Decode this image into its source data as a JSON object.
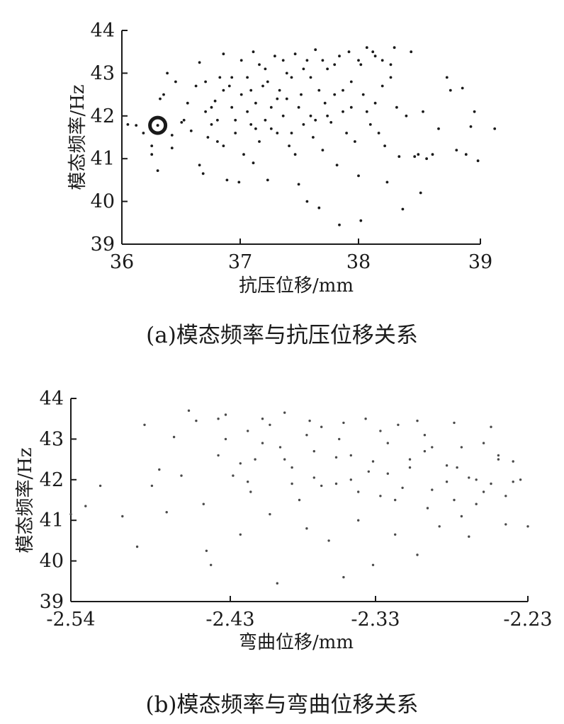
{
  "chart_data": [
    {
      "type": "scatter",
      "caption": "(a)模态频率与抗压位移关系",
      "xlabel": "抗压位移/mm",
      "ylabel": "模态频率/Hz",
      "xlim": [
        36,
        39
      ],
      "ylim": [
        39,
        44
      ],
      "xticks": [
        "36",
        "37",
        "38",
        "39"
      ],
      "yticks": [
        "39",
        "40",
        "41",
        "42",
        "43",
        "44"
      ],
      "marker_color": "#1a1a1a",
      "highlight": {
        "x": 36.3,
        "y": 41.78,
        "shape": "circle"
      },
      "points": [
        [
          36.05,
          41.8
        ],
        [
          36.12,
          41.78
        ],
        [
          36.18,
          41.6
        ],
        [
          36.25,
          41.3
        ],
        [
          36.25,
          41.1
        ],
        [
          36.3,
          40.72
        ],
        [
          36.32,
          42.4
        ],
        [
          36.35,
          42.5
        ],
        [
          36.38,
          43.0
        ],
        [
          36.42,
          41.55
        ],
        [
          36.45,
          42.8
        ],
        [
          36.42,
          41.25
        ],
        [
          36.5,
          41.85
        ],
        [
          36.52,
          41.9
        ],
        [
          36.55,
          42.3
        ],
        [
          36.58,
          41.65
        ],
        [
          36.62,
          42.7
        ],
        [
          36.65,
          43.25
        ],
        [
          36.65,
          40.85
        ],
        [
          36.68,
          40.65
        ],
        [
          36.7,
          42.1
        ],
        [
          36.72,
          41.5
        ],
        [
          36.75,
          41.8
        ],
        [
          36.78,
          42.35
        ],
        [
          36.8,
          41.9
        ],
        [
          36.82,
          42.9
        ],
        [
          36.85,
          43.45
        ],
        [
          36.85,
          41.3
        ],
        [
          36.88,
          40.5
        ],
        [
          36.9,
          42.7
        ],
        [
          36.92,
          42.2
        ],
        [
          36.95,
          41.6
        ],
        [
          36.98,
          40.45
        ],
        [
          37.0,
          43.3
        ],
        [
          37.0,
          42.5
        ],
        [
          37.02,
          41.1
        ],
        [
          37.05,
          42.9
        ],
        [
          37.08,
          41.8
        ],
        [
          37.1,
          43.5
        ],
        [
          37.1,
          40.9
        ],
        [
          37.12,
          42.3
        ],
        [
          37.15,
          41.4
        ],
        [
          37.18,
          42.7
        ],
        [
          37.2,
          43.1
        ],
        [
          37.2,
          41.9
        ],
        [
          37.22,
          40.5
        ],
        [
          37.25,
          42.2
        ],
        [
          37.28,
          43.4
        ],
        [
          37.3,
          41.6
        ],
        [
          37.32,
          42.6
        ],
        [
          37.35,
          42.0
        ],
        [
          37.38,
          43.0
        ],
        [
          37.4,
          41.3
        ],
        [
          37.42,
          42.9
        ],
        [
          37.45,
          43.45
        ],
        [
          37.45,
          41.1
        ],
        [
          37.48,
          40.4
        ],
        [
          37.5,
          42.5
        ],
        [
          37.52,
          41.8
        ],
        [
          37.55,
          43.3
        ],
        [
          37.55,
          40.0
        ],
        [
          37.58,
          42.0
        ],
        [
          37.6,
          41.5
        ],
        [
          37.62,
          43.55
        ],
        [
          37.65,
          42.6
        ],
        [
          37.65,
          39.85
        ],
        [
          37.68,
          41.2
        ],
        [
          37.7,
          42.3
        ],
        [
          37.72,
          43.1
        ],
        [
          37.75,
          41.85
        ],
        [
          37.78,
          42.5
        ],
        [
          37.8,
          40.85
        ],
        [
          37.82,
          43.4
        ],
        [
          37.82,
          39.45
        ],
        [
          37.85,
          42.1
        ],
        [
          37.88,
          41.6
        ],
        [
          37.9,
          43.5
        ],
        [
          37.92,
          42.8
        ],
        [
          37.95,
          41.4
        ],
        [
          37.98,
          40.6
        ],
        [
          38.0,
          39.55
        ],
        [
          38.0,
          43.2
        ],
        [
          38.02,
          42.5
        ],
        [
          38.05,
          43.6
        ],
        [
          38.08,
          41.8
        ],
        [
          38.1,
          43.5
        ],
        [
          38.12,
          42.3
        ],
        [
          38.15,
          41.6
        ],
        [
          38.18,
          43.3
        ],
        [
          38.2,
          41.3
        ],
        [
          38.22,
          40.45
        ],
        [
          38.25,
          42.9
        ],
        [
          38.28,
          43.6
        ],
        [
          38.3,
          42.2
        ],
        [
          38.32,
          41.05
        ],
        [
          38.35,
          39.82
        ],
        [
          38.38,
          42.0
        ],
        [
          38.42,
          43.5
        ],
        [
          38.45,
          41.05
        ],
        [
          38.48,
          41.1
        ],
        [
          38.5,
          40.2
        ],
        [
          38.52,
          42.1
        ],
        [
          38.55,
          41.0
        ],
        [
          38.6,
          41.1
        ],
        [
          38.65,
          41.7
        ],
        [
          38.72,
          42.9
        ],
        [
          38.75,
          42.6
        ],
        [
          38.8,
          41.2
        ],
        [
          38.85,
          42.65
        ],
        [
          38.88,
          41.1
        ],
        [
          38.92,
          41.75
        ],
        [
          38.95,
          42.1
        ],
        [
          38.98,
          40.95
        ],
        [
          39.12,
          41.7
        ],
        [
          36.7,
          42.8
        ],
        [
          36.75,
          42.2
        ],
        [
          36.8,
          41.4
        ],
        [
          36.85,
          42.6
        ],
        [
          36.92,
          42.9
        ],
        [
          36.95,
          41.9
        ],
        [
          37.05,
          42.1
        ],
        [
          37.08,
          42.6
        ],
        [
          37.12,
          41.7
        ],
        [
          37.15,
          43.2
        ],
        [
          37.22,
          42.8
        ],
        [
          37.25,
          41.7
        ],
        [
          37.3,
          42.4
        ],
        [
          37.35,
          43.3
        ],
        [
          37.38,
          42.4
        ],
        [
          37.42,
          41.6
        ],
        [
          37.48,
          42.2
        ],
        [
          37.52,
          43.1
        ],
        [
          37.58,
          42.9
        ],
        [
          37.62,
          41.9
        ],
        [
          37.68,
          43.3
        ],
        [
          37.72,
          42.0
        ],
        [
          37.78,
          43.2
        ],
        [
          37.85,
          42.6
        ],
        [
          37.92,
          42.2
        ],
        [
          37.98,
          43.3
        ],
        [
          38.05,
          42.1
        ],
        [
          38.12,
          43.4
        ],
        [
          38.18,
          42.7
        ],
        [
          38.25,
          43.2
        ]
      ]
    },
    {
      "type": "scatter",
      "caption": "(b)模态频率与弯曲位移关系",
      "xlabel": "弯曲位移/mm",
      "ylabel": "模态频率/Hz",
      "xlim": [
        -2.54,
        -2.23
      ],
      "ylim": [
        39,
        44
      ],
      "xticks": [
        "-2.54",
        "-2.43",
        "-2.33",
        "-2.23"
      ],
      "yticks": [
        "39",
        "40",
        "41",
        "42",
        "43",
        "44"
      ],
      "marker_color": "#4a4a4a",
      "points": [
        [
          -2.54,
          41.15
        ],
        [
          -2.53,
          41.35
        ],
        [
          -2.52,
          41.85
        ],
        [
          -2.505,
          41.1
        ],
        [
          -2.495,
          40.35
        ],
        [
          -2.49,
          43.35
        ],
        [
          -2.485,
          41.85
        ],
        [
          -2.48,
          42.25
        ],
        [
          -2.475,
          41.2
        ],
        [
          -2.47,
          43.05
        ],
        [
          -2.465,
          42.1
        ],
        [
          -2.46,
          43.7
        ],
        [
          -2.455,
          43.45
        ],
        [
          -2.45,
          41.4
        ],
        [
          -2.448,
          40.25
        ],
        [
          -2.445,
          39.9
        ],
        [
          -2.44,
          42.6
        ],
        [
          -2.435,
          43.6
        ],
        [
          -2.43,
          42.1
        ],
        [
          -2.425,
          40.65
        ],
        [
          -2.42,
          43.2
        ],
        [
          -2.418,
          41.7
        ],
        [
          -2.415,
          42.5
        ],
        [
          -2.41,
          43.5
        ],
        [
          -2.405,
          41.15
        ],
        [
          -2.4,
          39.45
        ],
        [
          -2.398,
          42.8
        ],
        [
          -2.395,
          43.65
        ],
        [
          -2.39,
          42.3
        ],
        [
          -2.385,
          41.5
        ],
        [
          -2.38,
          40.8
        ],
        [
          -2.378,
          43.45
        ],
        [
          -2.375,
          42.05
        ],
        [
          -2.37,
          43.3
        ],
        [
          -2.365,
          40.5
        ],
        [
          -2.36,
          41.9
        ],
        [
          -2.358,
          43.0
        ],
        [
          -2.355,
          39.6
        ],
        [
          -2.35,
          42.6
        ],
        [
          -2.345,
          41.0
        ],
        [
          -2.34,
          43.5
        ],
        [
          -2.338,
          42.2
        ],
        [
          -2.335,
          39.9
        ],
        [
          -2.33,
          41.6
        ],
        [
          -2.325,
          42.9
        ],
        [
          -2.32,
          40.65
        ],
        [
          -2.318,
          43.35
        ],
        [
          -2.315,
          41.8
        ],
        [
          -2.31,
          42.5
        ],
        [
          -2.305,
          40.15
        ],
        [
          -2.3,
          43.1
        ],
        [
          -2.298,
          41.3
        ],
        [
          -2.295,
          42.8
        ],
        [
          -2.29,
          40.85
        ],
        [
          -2.285,
          41.95
        ],
        [
          -2.28,
          43.4
        ],
        [
          -2.278,
          42.3
        ],
        [
          -2.275,
          41.1
        ],
        [
          -2.27,
          40.6
        ],
        [
          -2.265,
          42.0
        ],
        [
          -2.26,
          41.7
        ],
        [
          -2.255,
          43.3
        ],
        [
          -2.25,
          42.5
        ],
        [
          -2.245,
          40.9
        ],
        [
          -2.24,
          41.95
        ],
        [
          -2.235,
          42.0
        ],
        [
          -2.23,
          40.85
        ],
        [
          -2.44,
          43.5
        ],
        [
          -2.435,
          43.0
        ],
        [
          -2.425,
          42.4
        ],
        [
          -2.42,
          41.95
        ],
        [
          -2.41,
          42.9
        ],
        [
          -2.405,
          43.35
        ],
        [
          -2.395,
          42.5
        ],
        [
          -2.39,
          41.9
        ],
        [
          -2.38,
          43.1
        ],
        [
          -2.375,
          42.7
        ],
        [
          -2.37,
          41.85
        ],
        [
          -2.36,
          42.55
        ],
        [
          -2.355,
          43.4
        ],
        [
          -2.35,
          42.0
        ],
        [
          -2.345,
          41.7
        ],
        [
          -2.335,
          42.45
        ],
        [
          -2.33,
          43.2
        ],
        [
          -2.325,
          42.15
        ],
        [
          -2.32,
          41.5
        ],
        [
          -2.31,
          42.3
        ],
        [
          -2.305,
          43.45
        ],
        [
          -2.3,
          42.7
        ],
        [
          -2.295,
          41.75
        ],
        [
          -2.285,
          42.35
        ],
        [
          -2.28,
          41.5
        ],
        [
          -2.275,
          42.8
        ],
        [
          -2.27,
          42.05
        ],
        [
          -2.265,
          41.4
        ],
        [
          -2.26,
          42.9
        ],
        [
          -2.255,
          41.9
        ],
        [
          -2.25,
          42.6
        ],
        [
          -2.245,
          41.6
        ],
        [
          -2.24,
          42.45
        ]
      ]
    }
  ]
}
